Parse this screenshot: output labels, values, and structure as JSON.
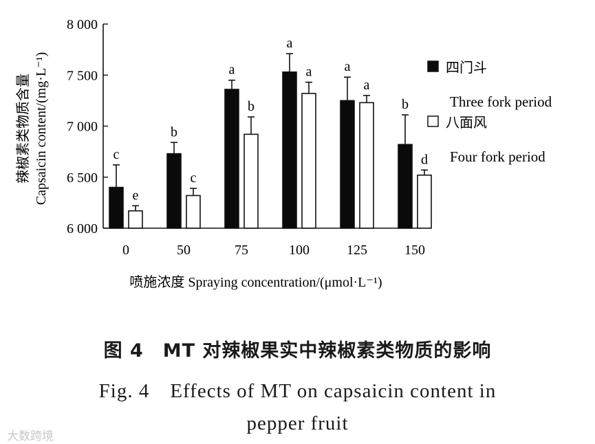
{
  "chart_data": {
    "type": "bar",
    "categories": [
      "0",
      "50",
      "75",
      "100",
      "125",
      "150"
    ],
    "series": [
      {
        "name": "四门斗",
        "name_en": "Three fork period",
        "color": "#0a0a0a",
        "values": [
          6400,
          6730,
          7360,
          7530,
          7250,
          6820
        ],
        "errors": [
          220,
          110,
          90,
          180,
          230,
          290
        ],
        "letters": [
          "c",
          "b",
          "a",
          "a",
          "a",
          "b"
        ]
      },
      {
        "name": "八面风",
        "name_en": "Four fork period",
        "color": "#ffffff",
        "values": [
          6170,
          6320,
          6920,
          7320,
          7230,
          6520
        ],
        "errors": [
          50,
          70,
          170,
          110,
          70,
          50
        ],
        "letters": [
          "e",
          "c",
          "b",
          "a",
          "a",
          "d"
        ]
      }
    ],
    "ylabel_cn": "辣椒素类物质含量",
    "ylabel_en": "Capsaicin content/(mg·L⁻¹)",
    "xlabel": "喷施浓度 Spraying concentration/(μmol·L⁻¹)",
    "ylim": [
      6000,
      8000
    ],
    "yticks": [
      6000,
      6500,
      7000,
      7500,
      8000
    ],
    "ytick_labels": [
      "6 000",
      "6 500",
      "7 000",
      "7 500",
      "8 000"
    ],
    "legend_position": "right",
    "grid": false
  },
  "caption": {
    "cn": "图 4　MT 对辣椒果实中辣椒素类物质的影响",
    "en_line1": "Fig. 4　Effects of MT on capsaicin content in",
    "en_line2": "pepper fruit"
  },
  "watermark": "大数跨境"
}
